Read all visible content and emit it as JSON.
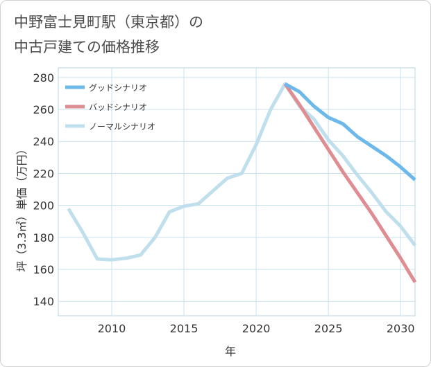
{
  "title": {
    "line1": "中野富士見町駅（東京都）の",
    "line2": "中古戸建ての価格推移"
  },
  "chart_data": {
    "type": "line",
    "xlabel": "年",
    "ylabel": "坪（3.3㎡）単価（万円）",
    "xlim": [
      2006.3,
      2031
    ],
    "ylim": [
      131,
      286
    ],
    "xticks": [
      2010,
      2015,
      2020,
      2025,
      2030
    ],
    "yticks": [
      140,
      160,
      180,
      200,
      220,
      240,
      260,
      280
    ],
    "legend_position": "top-left",
    "grid": true,
    "series": [
      {
        "name": "グッドシナリオ",
        "color": "#6cb8ea",
        "x": [
          2022,
          2023,
          2024,
          2025,
          2026,
          2027,
          2028,
          2029,
          2030,
          2031
        ],
        "values": [
          276,
          271,
          262,
          255,
          251,
          243,
          237,
          231,
          224,
          216
        ]
      },
      {
        "name": "バッドシナリオ",
        "color": "#de8e93",
        "x": [
          2022,
          2023,
          2024,
          2025,
          2026,
          2027,
          2028,
          2029,
          2030,
          2031
        ],
        "values": [
          276,
          263,
          249,
          235,
          221,
          208,
          195,
          181,
          167,
          152
        ]
      },
      {
        "name": "ノーマルシナリオ",
        "color": "#c0dfed",
        "x": [
          2007,
          2008,
          2009,
          2010,
          2011,
          2012,
          2013,
          2014,
          2015,
          2016,
          2017,
          2018,
          2019,
          2020,
          2021,
          2022,
          2023,
          2024,
          2025,
          2026,
          2027,
          2028,
          2029,
          2030,
          2031
        ],
        "values": [
          198,
          183,
          166.5,
          166,
          167,
          169,
          180,
          196,
          199.5,
          201,
          209,
          217,
          220,
          238,
          260,
          276,
          262,
          254,
          241,
          231,
          219,
          208,
          196,
          187,
          175
        ]
      }
    ]
  }
}
